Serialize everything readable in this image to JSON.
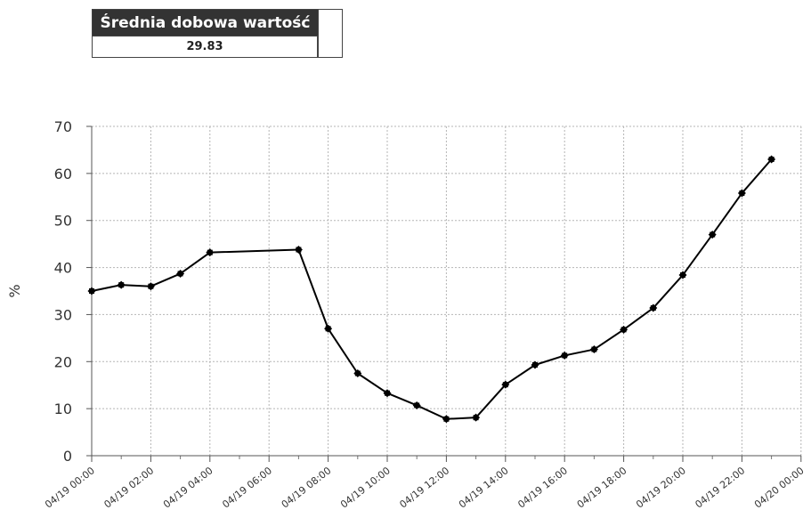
{
  "summary": {
    "label": "Średnia dobowa wartość",
    "value": "29.83"
  },
  "chart_data": {
    "type": "line",
    "title": "",
    "xlabel": "",
    "ylabel": "%",
    "ylim": [
      0,
      70
    ],
    "yticks": [
      "0",
      "10",
      "20",
      "30",
      "40",
      "50",
      "60",
      "70"
    ],
    "xticks": [
      "04/19 00:00",
      "04/19 02:00",
      "04/19 04:00",
      "04/19 06:00",
      "04/19 08:00",
      "04/19 10:00",
      "04/19 12:00",
      "04/19 14:00",
      "04/19 16:00",
      "04/19 18:00",
      "04/19 20:00",
      "04/19 22:00",
      "04/20 00:00"
    ],
    "grid": true,
    "legend": "none",
    "series": [
      {
        "color": "#000000",
        "marker": "diamond",
        "points": [
          {
            "x": "04/19 00:00",
            "y": 35.0
          },
          {
            "x": "04/19 01:00",
            "y": 36.3
          },
          {
            "x": "04/19 02:00",
            "y": 36.0
          },
          {
            "x": "04/19 03:00",
            "y": 38.7
          },
          {
            "x": "04/19 04:00",
            "y": 43.2
          },
          {
            "x": "04/19 07:00",
            "y": 43.8
          },
          {
            "x": "04/19 08:00",
            "y": 27.0
          },
          {
            "x": "04/19 09:00",
            "y": 17.5
          },
          {
            "x": "04/19 10:00",
            "y": 13.3
          },
          {
            "x": "04/19 11:00",
            "y": 10.7
          },
          {
            "x": "04/19 12:00",
            "y": 7.8
          },
          {
            "x": "04/19 13:00",
            "y": 8.1
          },
          {
            "x": "04/19 14:00",
            "y": 15.1
          },
          {
            "x": "04/19 15:00",
            "y": 19.3
          },
          {
            "x": "04/19 16:00",
            "y": 21.3
          },
          {
            "x": "04/19 17:00",
            "y": 22.6
          },
          {
            "x": "04/19 18:00",
            "y": 26.8
          },
          {
            "x": "04/19 19:00",
            "y": 31.4
          },
          {
            "x": "04/19 20:00",
            "y": 38.4
          },
          {
            "x": "04/19 21:00",
            "y": 47.0
          },
          {
            "x": "04/19 22:00",
            "y": 55.8
          },
          {
            "x": "04/19 23:00",
            "y": 63.0
          }
        ]
      }
    ]
  }
}
